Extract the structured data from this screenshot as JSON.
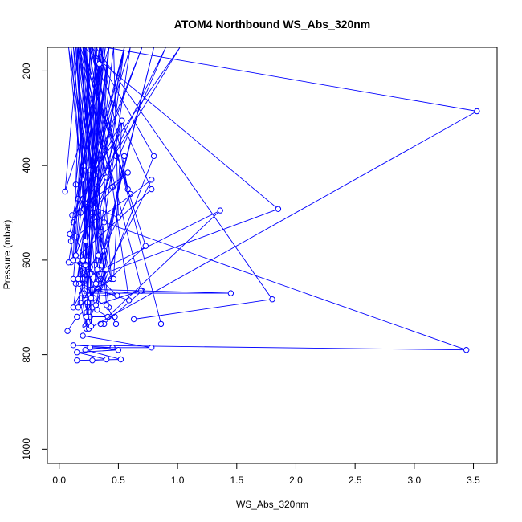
{
  "chart_data": {
    "type": "line",
    "title": "ATOM4 Northbound WS_Abs_320nm",
    "xlabel": "WS_Abs_320nm",
    "ylabel": "Pressure (mbar)",
    "xlim": [
      -0.1,
      3.7
    ],
    "ylim": [
      1030,
      150
    ],
    "y_reversed": true,
    "x_ticks": [
      0.0,
      0.5,
      1.0,
      1.5,
      2.0,
      2.5,
      3.0,
      3.5
    ],
    "x_tick_labels": [
      "0.0",
      "0.5",
      "1.0",
      "1.5",
      "2.0",
      "2.5",
      "3.0",
      "3.5"
    ],
    "y_ticks": [
      200,
      400,
      600,
      800,
      1000
    ],
    "y_tick_labels": [
      "200",
      "400",
      "600",
      "800",
      "1000"
    ],
    "grid": false,
    "legend": "none",
    "series_color": "#0000ff",
    "marker": "open-circle",
    "series": [
      {
        "x": [
          0.15,
          0.52,
          0.22,
          0.45,
          0.12,
          3.44,
          0.38,
          0.2,
          0.1,
          0.33,
          0.6,
          0.18,
          0.48,
          0.28,
          0.8,
          0.25,
          0.16,
          0.05,
          0.42,
          0.3,
          0.7,
          0.12,
          1.02,
          0.3,
          0.55,
          0.18
        ],
        "y": [
          812,
          810,
          790,
          785,
          780,
          790,
          520,
          470,
          150,
          600,
          460,
          150,
          380,
          150,
          380,
          730,
          150,
          455,
          150,
          420,
          150,
          520,
          150,
          410,
          150,
          640
        ]
      },
      {
        "x": [
          0.28,
          0.4,
          0.15,
          0.5,
          0.26,
          0.78,
          0.2,
          0.22,
          0.18,
          0.35,
          0.12,
          0.55,
          0.3,
          0.9,
          0.26,
          0.4,
          0.2,
          0.58,
          0.35,
          0.3,
          0.16,
          0.45,
          0.25,
          0.78,
          0.1
        ],
        "y": [
          812,
          810,
          795,
          790,
          785,
          785,
          760,
          740,
          690,
          640,
          600,
          150,
          500,
          150,
          480,
          425,
          150,
          450,
          150,
          420,
          150,
          445,
          150,
          450,
          605
        ]
      },
      {
        "x": [
          0.07,
          0.15,
          0.25,
          0.8,
          0.3,
          0.35,
          0.22,
          0.13,
          0.33,
          0.78,
          0.14,
          0.24,
          0.46,
          0.5,
          0.22,
          0.32,
          0.2,
          0.44,
          0.3,
          0.35,
          0.55,
          0.18,
          0.6,
          0.26,
          0.47
        ],
        "y": [
          750,
          720,
          700,
          150,
          660,
          640,
          150,
          600,
          660,
          430,
          550,
          620,
          150,
          510,
          480,
          150,
          400,
          640,
          150,
          540,
          150,
          500,
          150,
          720,
          720
        ]
      },
      {
        "x": [
          0.38,
          0.7,
          0.17,
          0.36,
          0.2,
          1.36,
          0.41,
          0.28,
          0.12,
          0.38,
          0.24,
          0.15,
          0.42,
          0.21,
          0.34,
          0.19,
          0.08,
          0.29,
          0.16,
          0.27,
          0.14
        ],
        "y": [
          735,
          665,
          150,
          612,
          640,
          495,
          720,
          700,
          150,
          580,
          690,
          150,
          700,
          670,
          150,
          430,
          150,
          510,
          470,
          150,
          440
        ]
      },
      {
        "x": [
          0.48,
          0.4,
          0.21,
          1.85,
          0.36,
          0.32,
          0.2,
          0.73,
          0.16,
          0.24,
          0.53,
          0.11,
          0.58,
          0.3,
          0.18,
          0.26
        ],
        "y": [
          735,
          695,
          150,
          492,
          630,
          620,
          150,
          570,
          700,
          600,
          305,
          505,
          415,
          490,
          150,
          410
        ]
      },
      {
        "x": [
          0.35,
          0.86,
          0.26,
          0.19,
          0.69,
          0.31,
          0.55,
          0.32,
          0.15,
          0.26,
          0.42,
          0.17,
          0.59,
          0.28,
          0.12
        ],
        "y": [
          735,
          735,
          150,
          680,
          665,
          695,
          380,
          705,
          600,
          615,
          150,
          650,
          685,
          150,
          640
        ]
      },
      {
        "x": [
          0.63,
          1.8,
          0.31,
          0.23,
          0.19,
          1.45,
          0.28,
          0.46,
          0.53,
          0.14,
          0.35,
          0.22,
          0.49
        ],
        "y": [
          725,
          683,
          150,
          745,
          670,
          670,
          662,
          640,
          305,
          590,
          150,
          610,
          675
        ]
      },
      {
        "x": [
          0.25,
          3.53,
          0.39,
          0.21,
          0.08,
          0.3,
          0.42,
          0.17,
          0.27,
          0.23,
          0.33,
          0.14
        ],
        "y": [
          745,
          285,
          150,
          400,
          605,
          610,
          150,
          650,
          740,
          150,
          590,
          650
        ]
      },
      {
        "x": [
          0.1,
          0.34,
          0.2,
          0.39,
          0.16,
          0.29,
          0.22,
          0.42,
          0.12,
          0.26,
          0.36
        ],
        "y": [
          560,
          185,
          600,
          150,
          640,
          680,
          560,
          150,
          700,
          630,
          150
        ]
      },
      {
        "x": [
          0.18,
          0.12,
          0.09,
          0.37,
          0.23,
          0.31,
          0.14,
          0.27,
          0.4,
          0.21
        ],
        "y": [
          150,
          600,
          545,
          150,
          720,
          650,
          150,
          680,
          620,
          150
        ]
      }
    ]
  }
}
